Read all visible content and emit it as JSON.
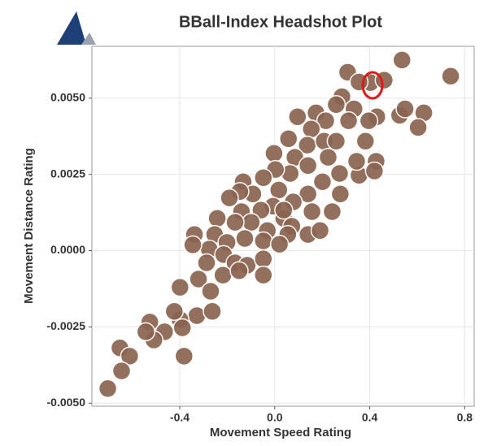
{
  "chart_data": {
    "type": "scatter",
    "title": "BBall-Index Headshot Plot",
    "x_label": "Movement Speed Rating",
    "y_label": "Movement Distance Rating",
    "color": "#8a6450",
    "x": [
      0.536,
      0.307,
      0.403,
      0.741,
      0.461,
      0.355,
      0.283,
      0.174,
      0.259,
      0.334,
      0.43,
      0.526,
      0.628,
      0.604,
      0.382,
      0.311,
      0.215,
      0.096,
      0.154,
      0.058,
      0.137,
      -0.003,
      0.085,
      0.208,
      0.225,
      0.14,
      0.273,
      0.355,
      0.427,
      0.42,
      0.201,
      0.065,
      0.003,
      -0.048,
      -0.133,
      0.017,
      0.14,
      0.276,
      0.078,
      -0.007,
      -0.092,
      -0.147,
      -0.191,
      -0.242,
      -0.14,
      -0.058,
      0.038,
      0.242,
      0.157,
      0.072,
      -0.031,
      -0.099,
      -0.167,
      -0.253,
      -0.201,
      -0.126,
      -0.048,
      0.055,
      0.14,
      -0.338,
      -0.276,
      -0.215,
      -0.345,
      -0.287,
      -0.167,
      -0.116,
      -0.048,
      0.02,
      -0.218,
      -0.15,
      -0.048,
      -0.321,
      -0.27,
      -0.399,
      -0.328,
      -0.263,
      -0.399,
      -0.526,
      -0.464,
      -0.389,
      -0.509,
      -0.382,
      -0.652,
      -0.611,
      -0.645,
      -0.703,
      -0.543,
      -0.423,
      0.038,
      0.259,
      0.549,
      0.396,
      0.191,
      0.345
    ],
    "y": [
      0.00625,
      0.00585,
      0.00551,
      0.00572,
      0.00559,
      0.00553,
      0.00505,
      0.00452,
      0.00479,
      0.00465,
      0.00439,
      0.00444,
      0.00452,
      0.00404,
      0.00359,
      0.00426,
      0.00426,
      0.00439,
      0.00399,
      0.00367,
      0.00346,
      0.00319,
      0.00306,
      0.00359,
      0.00306,
      0.00279,
      0.00253,
      0.00247,
      0.00293,
      0.00261,
      0.00226,
      0.00253,
      0.00266,
      0.00239,
      0.00226,
      0.00199,
      0.00186,
      0.00186,
      0.0016,
      0.00146,
      0.00186,
      0.00194,
      0.00173,
      0.00106,
      0.00128,
      0.00133,
      0.00106,
      0.00128,
      0.00128,
      0.0008,
      0.00066,
      0.00093,
      0.00093,
      0.00053,
      0.00027,
      0.0004,
      0.00032,
      0.00053,
      0.00053,
      0.00053,
      5e-05,
      -0.00013,
      0.00019,
      -0.0004,
      -0.0004,
      -0.00048,
      -0.00027,
      0.00021,
      -0.0008,
      -0.00066,
      -0.0008,
      -0.00093,
      -0.00133,
      -0.0012,
      -0.00213,
      -0.00199,
      -0.00226,
      -0.00234,
      -0.00266,
      -0.00253,
      -0.00293,
      -0.00346,
      -0.00319,
      -0.00346,
      -0.00394,
      -0.00452,
      -0.00266,
      -0.00199,
      0.00133,
      0.00359,
      0.00465,
      0.00426,
      0.00066,
      0.00293
    ],
    "xlim": [
      -0.77,
      0.84
    ],
    "ylim": [
      -0.0051,
      0.0067
    ],
    "xticks": [
      -0.4,
      {
        "value": 0,
        "label": "0.0"
      },
      0.4,
      0.8
    ],
    "yticks": [
      {
        "value": -0.005,
        "label": "-0.0050"
      },
      {
        "value": -0.0025,
        "label": "-0.0025"
      },
      {
        "value": 0,
        "label": "0.0000"
      },
      {
        "value": 0.0025,
        "label": "0.0025"
      },
      {
        "value": 0.005,
        "label": "0.0050"
      }
    ],
    "grid": true
  }
}
